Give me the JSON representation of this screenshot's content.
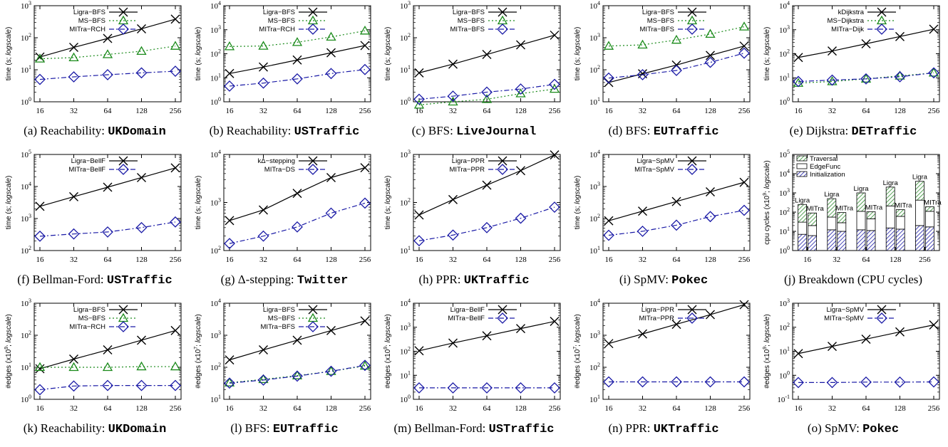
{
  "chart_data": [
    {
      "id": "a",
      "type": "line",
      "caption_prefix": "(a) Reachability: ",
      "caption_mono": "UKDomain",
      "ylabel_pre": "time (s; ",
      "ylabel_em": "logscale",
      "ylabel_post": ")",
      "ylog": [
        0,
        3
      ],
      "categories": [
        "16",
        "32",
        "64",
        "128",
        "256"
      ],
      "series": [
        {
          "name": "Ligra−BFS",
          "marker": "x",
          "style": "solid",
          "color": "#000000",
          "values": [
            25,
            50,
            95,
            190,
            380
          ]
        },
        {
          "name": "MS−BFS",
          "marker": "triangle",
          "style": "dotted",
          "color": "#1a8a1a",
          "values": [
            22,
            24,
            30,
            38,
            55
          ]
        },
        {
          "name": "MITra−RCH",
          "marker": "diamond",
          "style": "dashdot",
          "color": "#1a1aa6",
          "values": [
            5,
            6,
            7,
            8,
            9
          ]
        }
      ]
    },
    {
      "id": "b",
      "type": "line",
      "caption_prefix": "(b) Reachability: ",
      "caption_mono": "USTraffic",
      "ylabel_pre": "time (s; ",
      "ylabel_em": "logscale",
      "ylabel_post": ")",
      "ylog": [
        0,
        4
      ],
      "categories": [
        "16",
        "32",
        "64",
        "128",
        "256"
      ],
      "series": [
        {
          "name": "Ligra−BFS",
          "marker": "x",
          "style": "solid",
          "color": "#000000",
          "values": [
            15,
            28,
            55,
            110,
            220
          ]
        },
        {
          "name": "MS−BFS",
          "marker": "triangle",
          "style": "dotted",
          "color": "#1a8a1a",
          "values": [
            200,
            210,
            300,
            500,
            900
          ]
        },
        {
          "name": "MITra−RCH",
          "marker": "diamond",
          "style": "dashdot",
          "color": "#1a1aa6",
          "values": [
            4.5,
            6,
            9,
            15,
            22
          ]
        }
      ]
    },
    {
      "id": "c",
      "type": "line",
      "caption_prefix": "(c) BFS: ",
      "caption_mono": "LiveJournal",
      "ylabel_pre": "time (s; ",
      "ylabel_em": "logscale",
      "ylabel_post": ")",
      "ylog": [
        0,
        3
      ],
      "categories": [
        "16",
        "32",
        "64",
        "128",
        "256"
      ],
      "series": [
        {
          "name": "Ligra−BFS",
          "marker": "x",
          "style": "solid",
          "color": "#000000",
          "values": [
            8,
            15,
            30,
            60,
            120
          ]
        },
        {
          "name": "MS−BFS",
          "marker": "triangle",
          "style": "dotted",
          "color": "#1a8a1a",
          "values": [
            0.8,
            1,
            1.2,
            1.8,
            2.5
          ]
        },
        {
          "name": "MITra−BFS",
          "marker": "diamond",
          "style": "dashdot",
          "color": "#1a1aa6",
          "values": [
            1.2,
            1.5,
            2,
            2.5,
            3.5
          ]
        }
      ]
    },
    {
      "id": "d",
      "type": "line",
      "caption_prefix": "(d) BFS: ",
      "caption_mono": "EUTraffic",
      "ylabel_pre": "time (s; ",
      "ylabel_em": "logscale",
      "ylabel_post": ")",
      "ylog": [
        1,
        4
      ],
      "categories": [
        "16",
        "32",
        "64",
        "128",
        "256"
      ],
      "series": [
        {
          "name": "Ligra−BFS",
          "marker": "x",
          "style": "solid",
          "color": "#000000",
          "values": [
            40,
            75,
            140,
            280,
            550
          ]
        },
        {
          "name": "MS−BFS",
          "marker": "triangle",
          "style": "dotted",
          "color": "#1a8a1a",
          "values": [
            550,
            600,
            850,
            1300,
            2200
          ]
        },
        {
          "name": "MITra−BFS",
          "marker": "diamond",
          "style": "dashdot",
          "color": "#1a1aa6",
          "values": [
            55,
            70,
            95,
            170,
            330
          ]
        }
      ]
    },
    {
      "id": "e",
      "type": "line",
      "caption_prefix": "(e) Dijkstra: ",
      "caption_mono": "DETraffic",
      "ylabel_pre": "time (s; ",
      "ylabel_em": "logscale",
      "ylabel_post": ")",
      "ylog": [
        0,
        4
      ],
      "categories": [
        "16",
        "32",
        "64",
        "128",
        "256"
      ],
      "series": [
        {
          "name": "kDijkstra",
          "marker": "x",
          "style": "solid",
          "color": "#000000",
          "values": [
            70,
            130,
            260,
            520,
            1050
          ]
        },
        {
          "name": "MS−Dijkstra",
          "marker": "triangle",
          "style": "dotted",
          "color": "#1a8a1a",
          "values": [
            6,
            7,
            9,
            12,
            16
          ]
        },
        {
          "name": "MITra−Dijk",
          "marker": "diamond",
          "style": "dashdot",
          "color": "#1a1aa6",
          "values": [
            7,
            8,
            9,
            11,
            16
          ]
        }
      ]
    },
    {
      "id": "f",
      "type": "line",
      "caption_prefix": "(f) Bellman-Ford: ",
      "caption_mono": "USTraffic",
      "ylabel_pre": "time (s; ",
      "ylabel_em": "logscale",
      "ylabel_post": ")",
      "ylog": [
        2,
        5
      ],
      "categories": [
        "16",
        "32",
        "64",
        "128",
        "256"
      ],
      "series": [
        {
          "name": "Ligra−BellF",
          "marker": "x",
          "style": "solid",
          "color": "#000000",
          "values": [
            2400,
            4800,
            9500,
            19000,
            38000
          ]
        },
        {
          "name": "MITra−BellF",
          "marker": "diamond",
          "style": "dashdot",
          "color": "#1a1aa6",
          "values": [
            280,
            330,
            380,
            520,
            780
          ]
        }
      ]
    },
    {
      "id": "g",
      "type": "line",
      "caption_prefix": "(g) Δ-stepping: ",
      "caption_mono": "Twitter",
      "ylabel_pre": "time (s; ",
      "ylabel_em": "logscale",
      "ylabel_post": ")",
      "ylog": [
        2,
        4
      ],
      "categories": [
        "16",
        "32",
        "64",
        "128",
        "256"
      ],
      "series": [
        {
          "name": "kΔ−stepping",
          "marker": "x",
          "style": "solid",
          "color": "#000000",
          "values": [
            420,
            700,
            1550,
            3300,
            5300
          ]
        },
        {
          "name": "MITra−DS",
          "marker": "diamond",
          "style": "dashdot",
          "color": "#1a1aa6",
          "values": [
            140,
            200,
            310,
            600,
            970
          ]
        }
      ]
    },
    {
      "id": "h",
      "type": "line",
      "caption_prefix": "(h) PPR: ",
      "caption_mono": "UKTraffic",
      "ylabel_pre": "time (s; ",
      "ylabel_em": "logscale",
      "ylabel_post": ")",
      "ylog": [
        1,
        3
      ],
      "categories": [
        "16",
        "32",
        "64",
        "128",
        "256"
      ],
      "series": [
        {
          "name": "Ligra−PPR",
          "marker": "x",
          "style": "solid",
          "color": "#000000",
          "values": [
            55,
            115,
            230,
            460,
            980
          ]
        },
        {
          "name": "MITra−PPR",
          "marker": "diamond",
          "style": "dashdot",
          "color": "#1a1aa6",
          "values": [
            16,
            21,
            30,
            47,
            80
          ]
        }
      ]
    },
    {
      "id": "i",
      "type": "line",
      "caption_prefix": "(i) SpMV: ",
      "caption_mono": "Pokec",
      "ylabel_pre": "time (s; ",
      "ylabel_em": "logscale",
      "ylabel_post": ")",
      "ylog": [
        1,
        4
      ],
      "categories": [
        "16",
        "32",
        "64",
        "128",
        "256"
      ],
      "series": [
        {
          "name": "Ligra−SpMV",
          "marker": "x",
          "style": "solid",
          "color": "#000000",
          "values": [
            85,
            170,
            340,
            680,
            1350
          ]
        },
        {
          "name": "MITra−SpMV",
          "marker": "diamond",
          "style": "dashdot",
          "color": "#1a1aa6",
          "values": [
            30,
            40,
            62,
            115,
            180
          ]
        }
      ]
    },
    {
      "id": "j",
      "type": "bar",
      "caption_prefix": "(j) Breakdown (CPU cycles)",
      "caption_mono": "",
      "ylabel_pre": "cpu cycles (x10",
      "ylabel_sup": "9",
      "ylabel_em": "logscale",
      "ylabel_post": ")",
      "ylog": [
        0,
        5
      ],
      "categories": [
        "16",
        "32",
        "64",
        "128",
        "256"
      ],
      "bar_labels": [
        "Ligra",
        "MITra"
      ],
      "legend": [
        "Traversal",
        "EdgeFunc",
        "Initialization"
      ],
      "ligra": {
        "initialization": [
          7,
          12,
          12,
          15,
          20
        ],
        "edgefunc": [
          30,
          55,
          110,
          210,
          420
        ],
        "traversal": [
          250,
          500,
          1000,
          2000,
          4000
        ]
      },
      "mitra": {
        "initialization": [
          6,
          10,
          11,
          13,
          17
        ],
        "edgefunc": [
          20,
          28,
          45,
          60,
          110
        ],
        "traversal": [
          90,
          95,
          105,
          135,
          190
        ]
      }
    },
    {
      "id": "k",
      "type": "line",
      "caption_prefix": "(k) Reachability: ",
      "caption_mono": "UKDomain",
      "ylabel_pre": "#edges (x10",
      "ylabel_sup": "9",
      "ylabel_em": "logscale",
      "ylabel_post": ")",
      "ylog": [
        0,
        3
      ],
      "categories": [
        "16",
        "32",
        "64",
        "128",
        "256"
      ],
      "series": [
        {
          "name": "Ligra−BFS",
          "marker": "x",
          "style": "solid",
          "color": "#000000",
          "values": [
            9,
            18,
            35,
            70,
            140
          ]
        },
        {
          "name": "MS−BFS",
          "marker": "triangle",
          "style": "dotted",
          "color": "#1a8a1a",
          "values": [
            10,
            10,
            10,
            10.5,
            10.5
          ]
        },
        {
          "name": "MITra−RCH",
          "marker": "diamond",
          "style": "dashdot",
          "color": "#1a1aa6",
          "values": [
            2,
            2.6,
            2.7,
            2.7,
            2.7
          ]
        }
      ]
    },
    {
      "id": "l",
      "type": "line",
      "caption_prefix": "(l) BFS: ",
      "caption_mono": "EUTraffic",
      "ylabel_pre": "#edges (x10",
      "ylabel_sup": "7",
      "ylabel_em": "logscale",
      "ylabel_post": ")",
      "ylog": [
        1,
        4
      ],
      "categories": [
        "16",
        "32",
        "64",
        "128",
        "256"
      ],
      "series": [
        {
          "name": "Ligra−BFS",
          "marker": "x",
          "style": "solid",
          "color": "#000000",
          "values": [
            170,
            350,
            700,
            1400,
            2800
          ]
        },
        {
          "name": "MS−BFS",
          "marker": "triangle",
          "style": "dotted",
          "color": "#1a8a1a",
          "values": [
            33,
            42,
            55,
            75,
            110
          ]
        },
        {
          "name": "MITra−BFS",
          "marker": "diamond",
          "style": "dashdot",
          "color": "#1a1aa6",
          "values": [
            32,
            40,
            53,
            75,
            115
          ]
        }
      ]
    },
    {
      "id": "m",
      "type": "line",
      "caption_prefix": "(m) Bellman-Ford: ",
      "caption_mono": "USTraffic",
      "ylabel_pre": "#edges (x10",
      "ylabel_sup": "9",
      "ylabel_em": "logscale",
      "ylabel_post": ")",
      "ylog": [
        0,
        4
      ],
      "categories": [
        "16",
        "32",
        "64",
        "128",
        "256"
      ],
      "series": [
        {
          "name": "Ligra−BellF",
          "marker": "x",
          "style": "solid",
          "color": "#000000",
          "values": [
            105,
            220,
            440,
            880,
            1750
          ]
        },
        {
          "name": "MITra−BellF",
          "marker": "diamond",
          "style": "dashdot",
          "color": "#1a1aa6",
          "values": [
            3,
            3,
            3,
            3,
            3
          ]
        }
      ]
    },
    {
      "id": "n",
      "type": "line",
      "caption_prefix": "(n) PPR: ",
      "caption_mono": "UKTraffic",
      "ylabel_pre": "#edges (x10",
      "ylabel_sup": "7",
      "ylabel_em": "logscale",
      "ylabel_post": ")",
      "ylog": [
        1,
        4
      ],
      "categories": [
        "16",
        "32",
        "64",
        "128",
        "256"
      ],
      "series": [
        {
          "name": "Ligra−PPR",
          "marker": "x",
          "style": "solid",
          "color": "#000000",
          "values": [
            550,
            1100,
            2200,
            4400,
            9000
          ]
        },
        {
          "name": "MITra−PPR",
          "marker": "diamond",
          "style": "dashdot",
          "color": "#1a1aa6",
          "values": [
            35,
            35,
            35,
            35,
            35
          ]
        }
      ]
    },
    {
      "id": "o",
      "type": "line",
      "caption_prefix": "(o) SpMV: ",
      "caption_mono": "Pokec",
      "ylabel_pre": "#edges (x10",
      "ylabel_sup": "9",
      "ylabel_em": "logscale",
      "ylabel_post": ")",
      "ylog": [
        -1,
        3
      ],
      "categories": [
        "16",
        "32",
        "64",
        "128",
        "256"
      ],
      "series": [
        {
          "name": "Ligra−SpMV",
          "marker": "x",
          "style": "solid",
          "color": "#000000",
          "values": [
            8,
            16,
            32,
            64,
            125
          ]
        },
        {
          "name": "MITra−SpMV",
          "marker": "diamond",
          "style": "dashdot",
          "color": "#1a1aa6",
          "values": [
            0.5,
            0.5,
            0.52,
            0.52,
            0.53
          ]
        }
      ]
    }
  ]
}
